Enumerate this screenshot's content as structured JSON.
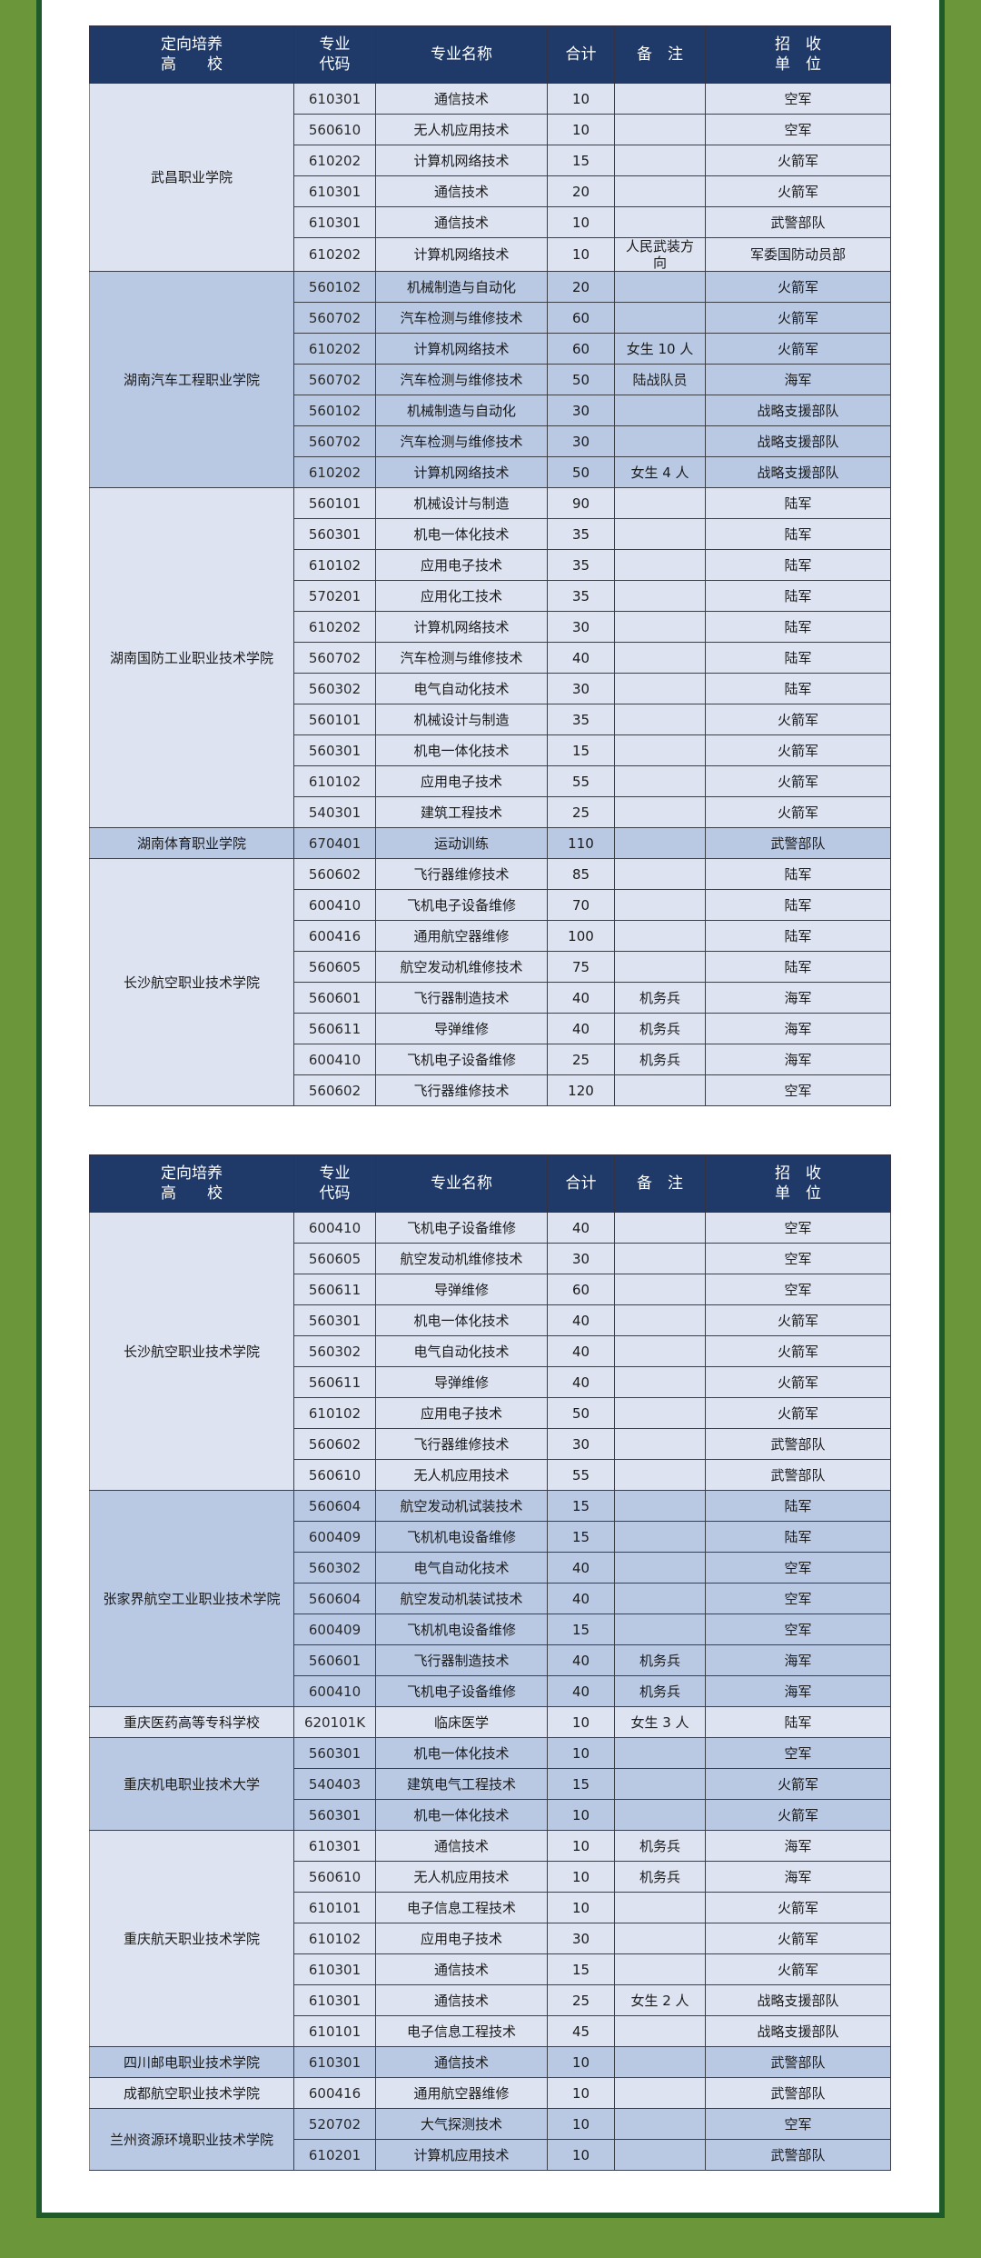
{
  "headers": [
    "定向培养\n高　　校",
    "专业\n代码",
    "专业名称",
    "合计",
    "备　注",
    "招　收\n单　位"
  ],
  "tables": [
    {
      "groups": [
        {
          "college": "武昌职业学院",
          "rows": [
            [
              "610301",
              "通信技术",
              "10",
              "",
              "空军"
            ],
            [
              "560610",
              "无人机应用技术",
              "10",
              "",
              "空军"
            ],
            [
              "610202",
              "计算机网络技术",
              "15",
              "",
              "火箭军"
            ],
            [
              "610301",
              "通信技术",
              "20",
              "",
              "火箭军"
            ],
            [
              "610301",
              "通信技术",
              "10",
              "",
              "武警部队"
            ],
            [
              "610202",
              "计算机网络技术",
              "10",
              "人民武装方向",
              "军委国防动员部"
            ]
          ]
        },
        {
          "college": "湖南汽车工程职业学院",
          "rows": [
            [
              "560102",
              "机械制造与自动化",
              "20",
              "",
              "火箭军"
            ],
            [
              "560702",
              "汽车检测与维修技术",
              "60",
              "",
              "火箭军"
            ],
            [
              "610202",
              "计算机网络技术",
              "60",
              "女生 10 人",
              "火箭军"
            ],
            [
              "560702",
              "汽车检测与维修技术",
              "50",
              "陆战队员",
              "海军"
            ],
            [
              "560102",
              "机械制造与自动化",
              "30",
              "",
              "战略支援部队"
            ],
            [
              "560702",
              "汽车检测与维修技术",
              "30",
              "",
              "战略支援部队"
            ],
            [
              "610202",
              "计算机网络技术",
              "50",
              "女生 4 人",
              "战略支援部队"
            ]
          ]
        },
        {
          "college": "湖南国防工业职业技术学院",
          "rows": [
            [
              "560101",
              "机械设计与制造",
              "90",
              "",
              "陆军"
            ],
            [
              "560301",
              "机电一体化技术",
              "35",
              "",
              "陆军"
            ],
            [
              "610102",
              "应用电子技术",
              "35",
              "",
              "陆军"
            ],
            [
              "570201",
              "应用化工技术",
              "35",
              "",
              "陆军"
            ],
            [
              "610202",
              "计算机网络技术",
              "30",
              "",
              "陆军"
            ],
            [
              "560702",
              "汽车检测与维修技术",
              "40",
              "",
              "陆军"
            ],
            [
              "560302",
              "电气自动化技术",
              "30",
              "",
              "陆军"
            ],
            [
              "560101",
              "机械设计与制造",
              "35",
              "",
              "火箭军"
            ],
            [
              "560301",
              "机电一体化技术",
              "15",
              "",
              "火箭军"
            ],
            [
              "610102",
              "应用电子技术",
              "55",
              "",
              "火箭军"
            ],
            [
              "540301",
              "建筑工程技术",
              "25",
              "",
              "火箭军"
            ]
          ]
        },
        {
          "college": "湖南体育职业学院",
          "rows": [
            [
              "670401",
              "运动训练",
              "110",
              "",
              "武警部队"
            ]
          ]
        },
        {
          "college": "长沙航空职业技术学院",
          "rows": [
            [
              "560602",
              "飞行器维修技术",
              "85",
              "",
              "陆军"
            ],
            [
              "600410",
              "飞机电子设备维修",
              "70",
              "",
              "陆军"
            ],
            [
              "600416",
              "通用航空器维修",
              "100",
              "",
              "陆军"
            ],
            [
              "560605",
              "航空发动机维修技术",
              "75",
              "",
              "陆军"
            ],
            [
              "560601",
              "飞行器制造技术",
              "40",
              "机务兵",
              "海军"
            ],
            [
              "560611",
              "导弹维修",
              "40",
              "机务兵",
              "海军"
            ],
            [
              "600410",
              "飞机电子设备维修",
              "25",
              "机务兵",
              "海军"
            ],
            [
              "560602",
              "飞行器维修技术",
              "120",
              "",
              "空军"
            ]
          ]
        }
      ]
    },
    {
      "groups": [
        {
          "college": "长沙航空职业技术学院",
          "rows": [
            [
              "600410",
              "飞机电子设备维修",
              "40",
              "",
              "空军"
            ],
            [
              "560605",
              "航空发动机维修技术",
              "30",
              "",
              "空军"
            ],
            [
              "560611",
              "导弹维修",
              "60",
              "",
              "空军"
            ],
            [
              "560301",
              "机电一体化技术",
              "40",
              "",
              "火箭军"
            ],
            [
              "560302",
              "电气自动化技术",
              "40",
              "",
              "火箭军"
            ],
            [
              "560611",
              "导弹维修",
              "40",
              "",
              "火箭军"
            ],
            [
              "610102",
              "应用电子技术",
              "50",
              "",
              "火箭军"
            ],
            [
              "560602",
              "飞行器维修技术",
              "30",
              "",
              "武警部队"
            ],
            [
              "560610",
              "无人机应用技术",
              "55",
              "",
              "武警部队"
            ]
          ]
        },
        {
          "college": "张家界航空工业职业技术学院",
          "rows": [
            [
              "560604",
              "航空发动机试装技术",
              "15",
              "",
              "陆军"
            ],
            [
              "600409",
              "飞机机电设备维修",
              "15",
              "",
              "陆军"
            ],
            [
              "560302",
              "电气自动化技术",
              "40",
              "",
              "空军"
            ],
            [
              "560604",
              "航空发动机装试技术",
              "40",
              "",
              "空军"
            ],
            [
              "600409",
              "飞机机电设备维修",
              "15",
              "",
              "空军"
            ],
            [
              "560601",
              "飞行器制造技术",
              "40",
              "机务兵",
              "海军"
            ],
            [
              "600410",
              "飞机电子设备维修",
              "40",
              "机务兵",
              "海军"
            ]
          ]
        },
        {
          "college": "重庆医药高等专科学校",
          "rows": [
            [
              "620101K",
              "临床医学",
              "10",
              "女生 3 人",
              "陆军"
            ]
          ]
        },
        {
          "college": "重庆机电职业技术大学",
          "rows": [
            [
              "560301",
              "机电一体化技术",
              "10",
              "",
              "空军"
            ],
            [
              "540403",
              "建筑电气工程技术",
              "15",
              "",
              "火箭军"
            ],
            [
              "560301",
              "机电一体化技术",
              "10",
              "",
              "火箭军"
            ]
          ]
        },
        {
          "college": "重庆航天职业技术学院",
          "rows": [
            [
              "610301",
              "通信技术",
              "10",
              "机务兵",
              "海军"
            ],
            [
              "560610",
              "无人机应用技术",
              "10",
              "机务兵",
              "海军"
            ],
            [
              "610101",
              "电子信息工程技术",
              "10",
              "",
              "火箭军"
            ],
            [
              "610102",
              "应用电子技术",
              "30",
              "",
              "火箭军"
            ],
            [
              "610301",
              "通信技术",
              "15",
              "",
              "火箭军"
            ],
            [
              "610301",
              "通信技术",
              "25",
              "女生 2 人",
              "战略支援部队"
            ],
            [
              "610101",
              "电子信息工程技术",
              "45",
              "",
              "战略支援部队"
            ]
          ]
        },
        {
          "college": "四川邮电职业技术学院",
          "rows": [
            [
              "610301",
              "通信技术",
              "10",
              "",
              "武警部队"
            ]
          ]
        },
        {
          "college": "成都航空职业技术学院",
          "rows": [
            [
              "600416",
              "通用航空器维修",
              "10",
              "",
              "武警部队"
            ]
          ]
        },
        {
          "college": "兰州资源环境职业技术学院",
          "rows": [
            [
              "520702",
              "大气探测技术",
              "10",
              "",
              "空军"
            ],
            [
              "610201",
              "计算机应用技术",
              "10",
              "",
              "武警部队"
            ]
          ]
        }
      ]
    }
  ],
  "colors": {
    "header": "#1f3a68",
    "group_light": "#dde3f1",
    "group_dark": "#b9c9e4",
    "frame_green": "#6b963a",
    "frame_dark": "#1f5a2a"
  }
}
